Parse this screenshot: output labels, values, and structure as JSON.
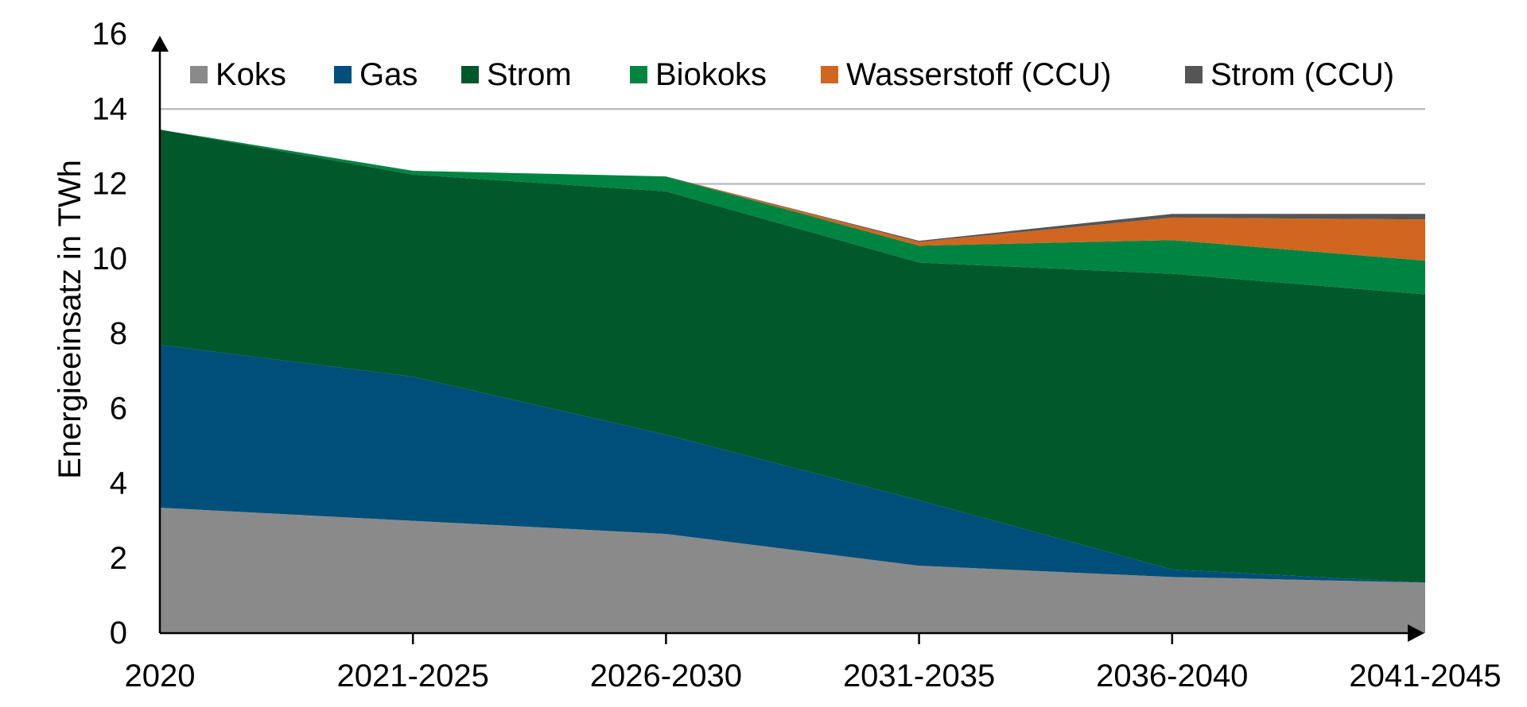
{
  "chart_data": {
    "type": "area",
    "stacked": true,
    "ylabel": "Energieeinsatz in TWh",
    "xlabel": "",
    "ylim": [
      0,
      16
    ],
    "yticks": [
      "0",
      "2",
      "4",
      "6",
      "8",
      "10",
      "12",
      "14",
      "16"
    ],
    "gridlines": [
      12,
      14
    ],
    "categories": [
      "2020",
      "2021-2025",
      "2026-2030",
      "2031-2035",
      "2036-2040",
      "2041-2045"
    ],
    "legend_position": "top",
    "series": [
      {
        "name": "Koks",
        "color": "#8a8a8a",
        "values": [
          3.35,
          3.0,
          2.65,
          1.8,
          1.5,
          1.35
        ]
      },
      {
        "name": "Gas",
        "color": "#004f7a",
        "values": [
          4.35,
          3.85,
          2.65,
          1.75,
          0.2,
          0.0
        ]
      },
      {
        "name": "Strom",
        "color": "#00582b",
        "values": [
          5.75,
          5.4,
          6.5,
          6.35,
          7.9,
          7.7
        ]
      },
      {
        "name": "Biokoks",
        "color": "#008442",
        "values": [
          0.0,
          0.1,
          0.4,
          0.45,
          0.9,
          0.9
        ]
      },
      {
        "name": "Wasserstoff (CCU)",
        "color": "#d0661f",
        "values": [
          0.0,
          0.0,
          0.0,
          0.1,
          0.6,
          1.1
        ]
      },
      {
        "name": "Strom (CCU)",
        "color": "#555555",
        "values": [
          0.0,
          0.0,
          0.0,
          0.03,
          0.1,
          0.15
        ]
      }
    ]
  }
}
